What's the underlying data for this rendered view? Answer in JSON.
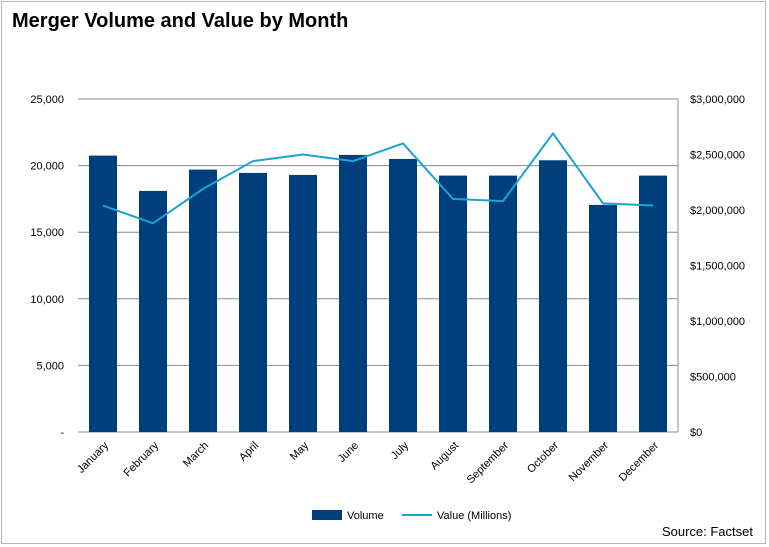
{
  "chart_data": {
    "type": "bar",
    "title": "Merger Volume and Value by Month",
    "categories": [
      "January",
      "February",
      "March",
      "April",
      "May",
      "June",
      "July",
      "August",
      "September",
      "October",
      "November",
      "December"
    ],
    "series": [
      {
        "name": "Volume",
        "type": "bar",
        "axis": "left",
        "color": "#003f7d",
        "values": [
          20750,
          18100,
          19700,
          19450,
          19300,
          20800,
          20500,
          19250,
          19250,
          20400,
          17050,
          19250
        ]
      },
      {
        "name": "Value (Millions)",
        "type": "line",
        "axis": "right",
        "color": "#1ba3d6",
        "values": [
          2040000,
          1880000,
          2190000,
          2440000,
          2500000,
          2440000,
          2600000,
          2100000,
          2080000,
          2690000,
          2060000,
          2040000
        ]
      }
    ],
    "y_left": {
      "min": 0,
      "max": 25000,
      "ticks": [
        0,
        5000,
        10000,
        15000,
        20000,
        25000
      ],
      "tick_labels": [
        "-",
        "5,000",
        "10,000",
        "15,000",
        "20,000",
        "25,000"
      ]
    },
    "y_right": {
      "min": 0,
      "max": 3000000,
      "ticks": [
        0,
        500000,
        1000000,
        1500000,
        2000000,
        2500000,
        3000000
      ],
      "tick_labels": [
        "$0",
        "$500,000",
        "$1,000,000",
        "$1,500,000",
        "$2,000,000",
        "$2,500,000",
        "$3,000,000"
      ]
    },
    "grid": true,
    "legend_position": "bottom"
  },
  "source": "Source: Factset"
}
